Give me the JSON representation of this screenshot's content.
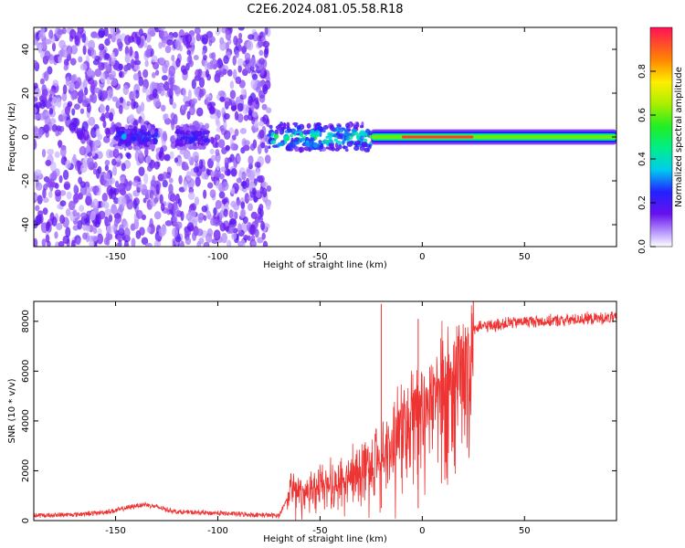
{
  "title": "C2E6.2024.081.05.58.R18",
  "chart_data": [
    {
      "type": "heatmap",
      "xlabel": "Height of straight line (km)",
      "ylabel": "Frequency (Hz)",
      "xlim": [
        -190,
        95
      ],
      "ylim": [
        -50,
        50
      ],
      "x_ticks": [
        -150,
        -100,
        -50,
        0,
        50
      ],
      "y_ticks": [
        -40,
        -20,
        0,
        20,
        40
      ],
      "colorbar": {
        "label": "Normalized spectral amplitude",
        "range": [
          0,
          1
        ],
        "ticks": [
          0.0,
          0.2,
          0.4,
          0.6,
          0.8
        ]
      },
      "regions": [
        {
          "x": [
            -190,
            -75
          ],
          "description": "broadband scattered noise, all frequencies, amplitude ~0.1-0.2"
        },
        {
          "x": [
            -150,
            -130
          ],
          "freq_center": 0,
          "peak_amplitude": 0.35
        },
        {
          "x": [
            -120,
            -105
          ],
          "freq_center": 0,
          "peak_amplitude": 0.3
        },
        {
          "x": [
            -75,
            -25
          ],
          "freq_center": 0,
          "freq_halfwidth": 6,
          "peak_amplitude": 0.55
        },
        {
          "x": [
            -25,
            95
          ],
          "freq_center": 0,
          "freq_halfwidth": 2,
          "peak_amplitude": 0.95
        }
      ]
    },
    {
      "type": "line",
      "xlabel": "Height of straight line (km)",
      "ylabel": "SNR (10 * v/v)",
      "xlim": [
        -190,
        95
      ],
      "ylim": [
        0,
        8800
      ],
      "x_ticks": [
        -150,
        -100,
        -50,
        0,
        50
      ],
      "y_ticks": [
        0,
        2000,
        4000,
        6000,
        8000
      ],
      "color": "#ee3333",
      "series": [
        {
          "x": [
            -190,
            -180,
            -170,
            -160,
            -150,
            -145,
            -140,
            -135,
            -130,
            -125,
            -120,
            -110,
            -100,
            -90,
            -80,
            -70,
            -66,
            -63,
            -60,
            -55,
            -50,
            -45,
            -40,
            -35,
            -30,
            -25,
            -20,
            -15,
            -10,
            -5,
            0,
            5,
            10,
            15,
            20,
            25,
            30,
            40,
            50,
            60,
            70,
            80,
            95
          ],
          "y": [
            200,
            220,
            250,
            300,
            400,
            500,
            600,
            650,
            550,
            450,
            350,
            320,
            300,
            260,
            230,
            200,
            900,
            1800,
            1200,
            1500,
            1700,
            1800,
            2000,
            2200,
            2600,
            2800,
            3200,
            3700,
            4200,
            4700,
            5100,
            5600,
            6300,
            7000,
            7400,
            7700,
            7800,
            7900,
            8000,
            8000,
            8050,
            8100,
            8150
          ]
        }
      ],
      "annotations": [
        {
          "x": -20,
          "y": 8700,
          "text": ""
        },
        {
          "x": -2,
          "y": 8100,
          "text": ""
        }
      ]
    }
  ],
  "colors": {
    "signal": "#ee3333",
    "noise": "#7733ee",
    "peak": "#ff2244"
  }
}
